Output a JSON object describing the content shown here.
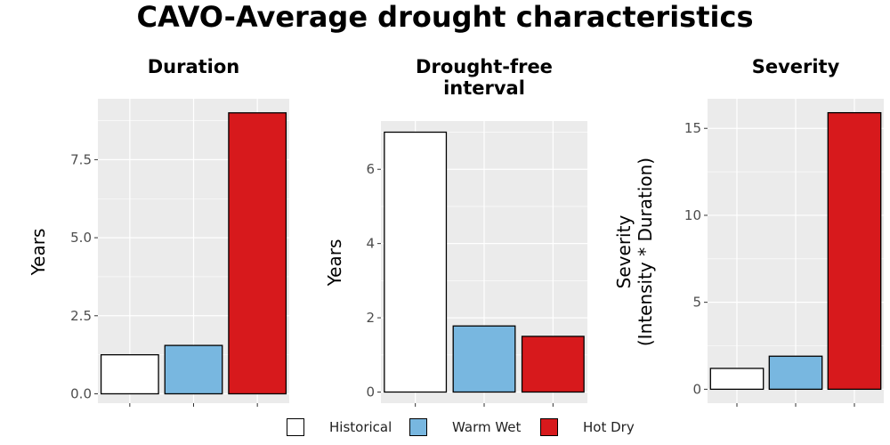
{
  "title": "CAVO-Average drought characteristics",
  "colors": {
    "Historical": "#ffffff",
    "Warm Wet": "#78b7e0",
    "Hot Dry": "#d7191c"
  },
  "legend": [
    "Historical",
    "Warm Wet",
    "Hot Dry"
  ],
  "chart_data": [
    {
      "type": "bar",
      "title": "Duration",
      "ylabel": "Years",
      "categories": [
        "Historical",
        "Warm Wet",
        "Hot Dry"
      ],
      "values": [
        1.25,
        1.55,
        9.0
      ],
      "ylim": [
        -0.3,
        9.45
      ],
      "yticks": [
        0.0,
        2.5,
        5.0,
        7.5
      ],
      "ytick_labels": [
        "0.0",
        "2.5",
        "5.0",
        "7.5"
      ],
      "grid": true
    },
    {
      "type": "bar",
      "title": "Drought-free\ninterval",
      "ylabel": "Years",
      "categories": [
        "Historical",
        "Warm Wet",
        "Hot Dry"
      ],
      "values": [
        7.0,
        1.78,
        1.5
      ],
      "ylim": [
        -0.3,
        7.3
      ],
      "yticks": [
        0,
        2,
        4,
        6
      ],
      "ytick_labels": [
        "0",
        "2",
        "4",
        "6"
      ],
      "grid": true
    },
    {
      "type": "bar",
      "title": "Severity",
      "ylabel": "Severity\n(Intensity * Duration)",
      "categories": [
        "Historical",
        "Warm Wet",
        "Hot Dry"
      ],
      "values": [
        1.2,
        1.9,
        15.9
      ],
      "ylim": [
        -0.8,
        16.7
      ],
      "yticks": [
        0,
        5,
        10,
        15
      ],
      "ytick_labels": [
        "0",
        "5",
        "10",
        "15"
      ],
      "grid": true
    }
  ]
}
